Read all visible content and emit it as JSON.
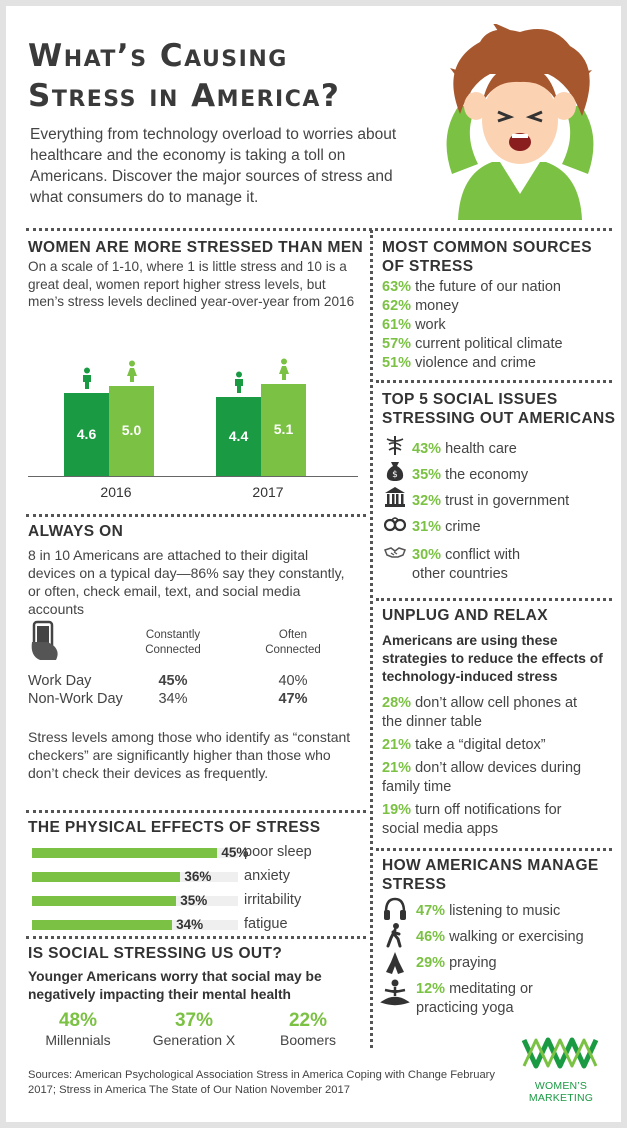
{
  "title_line1": "What’s Causing",
  "title_line2": "Stress in America?",
  "intro": "Everything from technology overload to worries about healthcare and the economy is taking a toll on Americans. Discover the major sources of stress and what consumers do to manage it.",
  "women_men": {
    "heading": "WOMEN ARE MORE STRESSED THAN MEN",
    "text": "On a scale of 1-10, where 1 is little stress and 10 is a great deal, women report higher stress levels, but men’s stress levels declined year-over-year from 2016",
    "chart_data": {
      "type": "bar",
      "categories": [
        "2016",
        "2017"
      ],
      "series": [
        {
          "values": [
            4.6,
            4.4
          ]
        },
        {
          "values": [
            5.0,
            5.1
          ]
        }
      ],
      "value_labels": [
        [
          "4.6",
          "4.4"
        ],
        [
          "5.0",
          "5.1"
        ]
      ],
      "colors": [
        "#1a9a43",
        "#7bc143"
      ],
      "ylim": [
        0,
        7.2
      ]
    }
  },
  "always_on": {
    "heading": "ALWAYS ON",
    "text": "8 in 10 Americans are attached to their digital devices on a typical day—86% say they constantly, or often, check email, text, and social media accounts",
    "col1_line1": "Constantly",
    "col1_line2": "Connected",
    "col2_line1": "Often",
    "col2_line2": "Connected",
    "rows": [
      {
        "label": "Work Day",
        "constantly": "45%",
        "often": "40%"
      },
      {
        "label": "Non-Work Day",
        "constantly": "34%",
        "often": "47%"
      }
    ],
    "footer": "Stress levels among those who identify as “constant checkers” are significantly higher than those who don’t check their devices as frequently."
  },
  "physical": {
    "heading": "THE PHYSICAL EFFECTS OF STRESS",
    "chart_data": {
      "type": "bar",
      "categories": [
        "poor sleep",
        "anxiety",
        "irritability",
        "fatigue"
      ],
      "values": [
        45,
        36,
        35,
        34
      ],
      "value_labels": [
        "45%",
        "36%",
        "35%",
        "34%"
      ],
      "xlim": [
        0,
        100
      ]
    }
  },
  "social": {
    "heading": "IS SOCIAL STRESSING US OUT?",
    "subheading": "Younger Americans worry that social may be negatively impacting their mental health",
    "groups": [
      {
        "pct": "48%",
        "label": "Millennials"
      },
      {
        "pct": "37%",
        "label": "Generation X"
      },
      {
        "pct": "22%",
        "label": "Boomers"
      }
    ]
  },
  "sources": {
    "heading_line1": "MOST COMMON SOURCES",
    "heading_line2": "OF STRESS",
    "items": [
      {
        "pct": "63%",
        "text": "the future of our nation"
      },
      {
        "pct": "62%",
        "text": "money"
      },
      {
        "pct": "61%",
        "text": "work"
      },
      {
        "pct": "57%",
        "text": "current political climate"
      },
      {
        "pct": "51%",
        "text": "violence and crime"
      }
    ]
  },
  "social_issues": {
    "heading_line1": "TOP 5 SOCIAL ISSUES",
    "heading_line2": "STRESSING OUT AMERICANS",
    "items": [
      {
        "icon": "caduceus-icon",
        "pct": "43%",
        "text": "health care",
        "text2": ""
      },
      {
        "icon": "money-bag-icon",
        "pct": "35%",
        "text": "the economy",
        "text2": ""
      },
      {
        "icon": "government-building-icon",
        "pct": "32%",
        "text": "trust in government",
        "text2": ""
      },
      {
        "icon": "handcuffs-icon",
        "pct": "31%",
        "text": "crime",
        "text2": ""
      },
      {
        "icon": "handshake-icon",
        "pct": "30%",
        "text": "conflict with",
        "text2": "other countries"
      }
    ]
  },
  "unplug": {
    "heading": "UNPLUG AND RELAX",
    "subheading": "Americans are using these strategies to reduce the effects of technology-induced stress",
    "items": [
      {
        "pct": "28%",
        "text1": "don’t allow cell phones at",
        "text2": "the dinner table"
      },
      {
        "pct": "21%",
        "text1": "take a “digital detox”",
        "text2": ""
      },
      {
        "pct": "21%",
        "text1": "don’t allow devices during",
        "text2": "family time"
      },
      {
        "pct": "19%",
        "text1": "turn off notifications for",
        "text2": "social media apps"
      }
    ]
  },
  "manage": {
    "heading_line1": "HOW AMERICANS MANAGE",
    "heading_line2": "STRESS",
    "items": [
      {
        "icon": "headphones-icon",
        "pct": "47%",
        "text": "listening to music",
        "text2": ""
      },
      {
        "icon": "walking-icon",
        "pct": "46%",
        "text": "walking or exercising",
        "text2": ""
      },
      {
        "icon": "praying-hands-icon",
        "pct": "29%",
        "text": "praying",
        "text2": ""
      },
      {
        "icon": "meditation-icon",
        "pct": "12%",
        "text": "meditating or",
        "text2": "practicing yoga"
      }
    ]
  },
  "footer": {
    "text": "Sources: American Psychological Association Stress in America Coping with Change February 2017; Stress in America The State of Our Nation November 2017",
    "logo_text": "WOMEN’S MARKETING"
  },
  "colors": {
    "light_green": "#7bc143",
    "dark_green": "#1a9a43"
  }
}
